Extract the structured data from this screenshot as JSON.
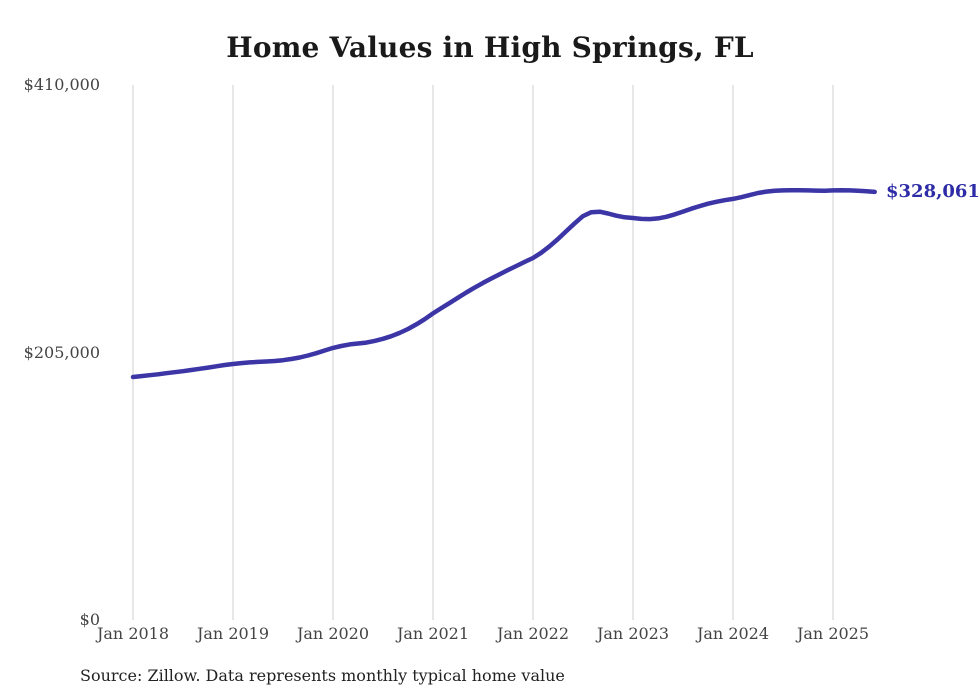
{
  "title": "Home Values in High Springs, FL",
  "source_note": "Source: Zillow. Data represents monthly typical home value",
  "end_label": "$328,061",
  "colors": {
    "line": "#3c35a6",
    "end_label": "#2d2ba6",
    "grid": "#cfcfcf",
    "title": "#1a1a1a",
    "tick": "#444444",
    "source": "#222222",
    "background": "#ffffff"
  },
  "chart_data": {
    "type": "line",
    "title": "Home Values in High Springs, FL",
    "x_tick_labels": [
      "Jan 2018",
      "Jan 2019",
      "Jan 2020",
      "Jan 2021",
      "Jan 2022",
      "Jan 2023",
      "Jan 2024",
      "Jan 2025"
    ],
    "y_tick_labels": [
      "$0",
      "$205,000",
      "$410,000"
    ],
    "y_ticks": [
      0,
      205000,
      410000
    ],
    "ylim": [
      0,
      410000
    ],
    "grid": "vertical-only",
    "legend": "none",
    "final_value": 328061,
    "series": [
      {
        "name": "Typical home value",
        "start_month": "2018-01",
        "end_month": "2025-06",
        "values": [
          186200,
          186900,
          187600,
          188300,
          189100,
          189900,
          190700,
          191600,
          192500,
          193400,
          194400,
          195400,
          196200,
          196900,
          197400,
          197800,
          198100,
          198500,
          199100,
          200000,
          201200,
          202700,
          204500,
          206500,
          208500,
          210000,
          211200,
          211900,
          212600,
          213900,
          215500,
          217500,
          220000,
          223000,
          226500,
          230500,
          235000,
          239000,
          243000,
          247000,
          251000,
          254700,
          258300,
          261700,
          265000,
          268200,
          271300,
          274400,
          277400,
          281500,
          286500,
          292000,
          298000,
          304000,
          309500,
          312500,
          312900,
          311500,
          309800,
          308600,
          308100,
          307400,
          307200,
          307800,
          309000,
          310800,
          313000,
          315200,
          317200,
          319000,
          320500,
          321700,
          322700,
          324000,
          325600,
          327200,
          328300,
          328900,
          329200,
          329300,
          329300,
          329200,
          329100,
          329000,
          329200,
          329300,
          329200,
          328900,
          328500,
          328061
        ]
      }
    ]
  }
}
